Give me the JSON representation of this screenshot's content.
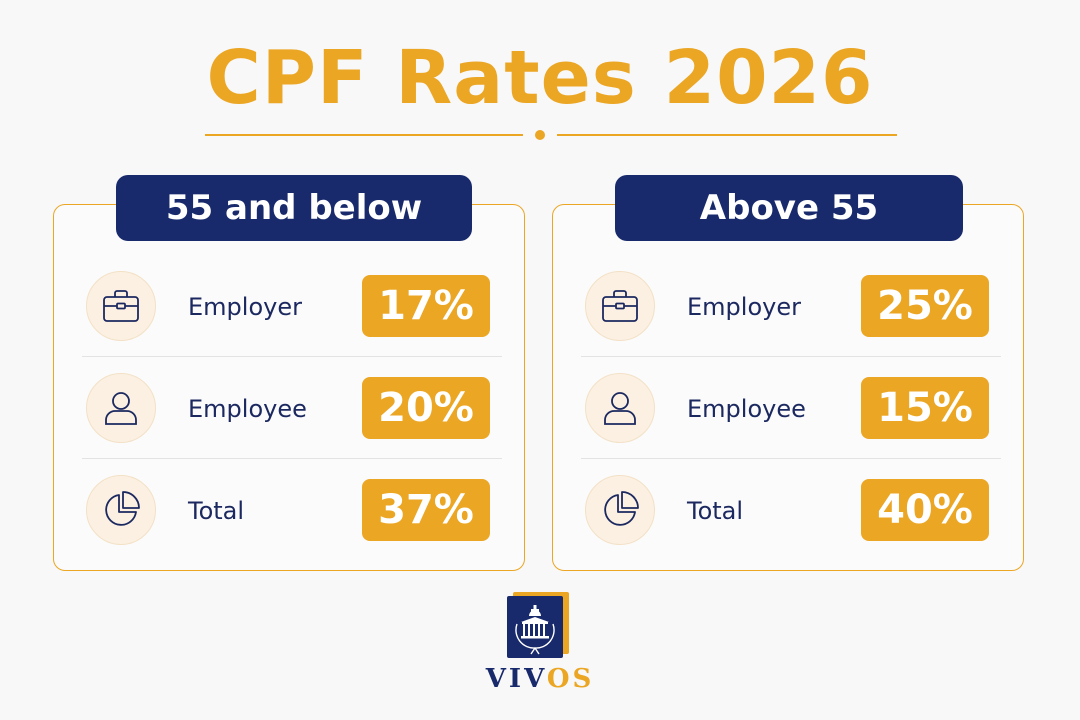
{
  "title": "CPF Rates 2026",
  "colors": {
    "accent": "#eba624",
    "navy": "#182a6b",
    "text": "#1c2960"
  },
  "panels": [
    {
      "header": "55 and below",
      "rows": [
        {
          "icon": "briefcase-icon",
          "label": "Employer",
          "value": "17%"
        },
        {
          "icon": "user-icon",
          "label": "Employee",
          "value": "20%"
        },
        {
          "icon": "pie-chart-icon",
          "label": "Total",
          "value": "37%"
        }
      ]
    },
    {
      "header": "Above 55",
      "rows": [
        {
          "icon": "briefcase-icon",
          "label": "Employer",
          "value": "25%"
        },
        {
          "icon": "user-icon",
          "label": "Employee",
          "value": "15%"
        },
        {
          "icon": "pie-chart-icon",
          "label": "Total",
          "value": "40%"
        }
      ]
    }
  ],
  "brand": {
    "name_main": "VIV",
    "name_accent": "OS",
    "icon": "building-logo-icon"
  }
}
